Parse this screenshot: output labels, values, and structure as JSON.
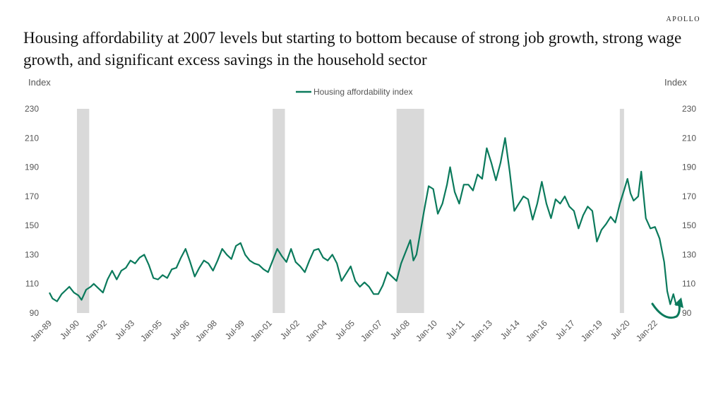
{
  "brand": "APOLLO",
  "title": "Housing affordability at 2007 levels but starting to bottom because of strong job growth, strong wage growth, and significant excess savings in the household sector",
  "chart_data": {
    "type": "line",
    "ylabel_left": "Index",
    "ylabel_right": "Index",
    "ylim": [
      90,
      230
    ],
    "y_ticks": [
      90,
      110,
      130,
      150,
      170,
      190,
      210,
      230
    ],
    "x_range": [
      "1989-01",
      "2023-03"
    ],
    "x_tick_labels": [
      "Jan-89",
      "Jul-90",
      "Jan-92",
      "Jul-93",
      "Jan-95",
      "Jul-96",
      "Jan-98",
      "Jul-99",
      "Jan-01",
      "Jul-02",
      "Jan-04",
      "Jul-05",
      "Jan-07",
      "Jul-08",
      "Jan-10",
      "Jul-11",
      "Jan-13",
      "Jul-14",
      "Jan-16",
      "Jul-17",
      "Jan-19",
      "Jul-20",
      "Jan-22"
    ],
    "x_tick_dates": [
      "1989-01",
      "1990-07",
      "1992-01",
      "1993-07",
      "1995-01",
      "1996-07",
      "1998-01",
      "1999-07",
      "2001-01",
      "2002-07",
      "2004-01",
      "2005-07",
      "2007-01",
      "2008-07",
      "2010-01",
      "2011-07",
      "2013-01",
      "2014-07",
      "2016-01",
      "2017-07",
      "2019-01",
      "2020-07",
      "2022-01"
    ],
    "grid": false,
    "legend_position": "top-center",
    "recession_shading": [
      {
        "start": "1990-07",
        "end": "1991-03"
      },
      {
        "start": "2001-03",
        "end": "2001-11"
      },
      {
        "start": "2007-12",
        "end": "2009-06"
      },
      {
        "start": "2020-02",
        "end": "2020-04"
      }
    ],
    "series": [
      {
        "name": "Housing affordability index",
        "color": "#0b7a5c",
        "points": [
          [
            "1989-01",
            104
          ],
          [
            "1989-03",
            100
          ],
          [
            "1989-06",
            98
          ],
          [
            "1989-09",
            103
          ],
          [
            "1989-12",
            106
          ],
          [
            "1990-02",
            108
          ],
          [
            "1990-05",
            104
          ],
          [
            "1990-08",
            102
          ],
          [
            "1990-10",
            99
          ],
          [
            "1991-01",
            106
          ],
          [
            "1991-04",
            108
          ],
          [
            "1991-06",
            110
          ],
          [
            "1991-09",
            107
          ],
          [
            "1991-12",
            104
          ],
          [
            "1992-03",
            113
          ],
          [
            "1992-06",
            119
          ],
          [
            "1992-09",
            113
          ],
          [
            "1992-12",
            119
          ],
          [
            "1993-03",
            121
          ],
          [
            "1993-06",
            126
          ],
          [
            "1993-09",
            124
          ],
          [
            "1993-12",
            128
          ],
          [
            "1994-03",
            130
          ],
          [
            "1994-06",
            123
          ],
          [
            "1994-09",
            114
          ],
          [
            "1994-12",
            113
          ],
          [
            "1995-03",
            116
          ],
          [
            "1995-06",
            114
          ],
          [
            "1995-09",
            120
          ],
          [
            "1995-12",
            121
          ],
          [
            "1996-03",
            128
          ],
          [
            "1996-06",
            134
          ],
          [
            "1996-09",
            125
          ],
          [
            "1996-12",
            115
          ],
          [
            "1997-03",
            121
          ],
          [
            "1997-06",
            126
          ],
          [
            "1997-09",
            124
          ],
          [
            "1997-12",
            119
          ],
          [
            "1998-03",
            126
          ],
          [
            "1998-06",
            134
          ],
          [
            "1998-09",
            130
          ],
          [
            "1998-12",
            127
          ],
          [
            "1999-03",
            136
          ],
          [
            "1999-06",
            138
          ],
          [
            "1999-09",
            130
          ],
          [
            "1999-12",
            126
          ],
          [
            "2000-03",
            124
          ],
          [
            "2000-06",
            123
          ],
          [
            "2000-09",
            120
          ],
          [
            "2000-12",
            118
          ],
          [
            "2001-03",
            126
          ],
          [
            "2001-06",
            134
          ],
          [
            "2001-09",
            129
          ],
          [
            "2001-12",
            125
          ],
          [
            "2002-03",
            134
          ],
          [
            "2002-06",
            125
          ],
          [
            "2002-09",
            122
          ],
          [
            "2002-12",
            118
          ],
          [
            "2003-03",
            126
          ],
          [
            "2003-06",
            133
          ],
          [
            "2003-09",
            134
          ],
          [
            "2003-12",
            128
          ],
          [
            "2004-03",
            126
          ],
          [
            "2004-06",
            130
          ],
          [
            "2004-09",
            124
          ],
          [
            "2004-12",
            112
          ],
          [
            "2005-03",
            117
          ],
          [
            "2005-06",
            122
          ],
          [
            "2005-09",
            112
          ],
          [
            "2005-12",
            108
          ],
          [
            "2006-03",
            111
          ],
          [
            "2006-06",
            108
          ],
          [
            "2006-09",
            103
          ],
          [
            "2006-12",
            103
          ],
          [
            "2007-03",
            109
          ],
          [
            "2007-06",
            118
          ],
          [
            "2007-09",
            115
          ],
          [
            "2007-12",
            112
          ],
          [
            "2008-03",
            124
          ],
          [
            "2008-06",
            132
          ],
          [
            "2008-09",
            140
          ],
          [
            "2008-11",
            126
          ],
          [
            "2009-01",
            130
          ],
          [
            "2009-04",
            148
          ],
          [
            "2009-06",
            160
          ],
          [
            "2009-09",
            177
          ],
          [
            "2009-12",
            175
          ],
          [
            "2010-03",
            158
          ],
          [
            "2010-06",
            165
          ],
          [
            "2010-09",
            178
          ],
          [
            "2010-11",
            190
          ],
          [
            "2011-02",
            173
          ],
          [
            "2011-05",
            165
          ],
          [
            "2011-08",
            178
          ],
          [
            "2011-11",
            178
          ],
          [
            "2012-02",
            174
          ],
          [
            "2012-05",
            185
          ],
          [
            "2012-08",
            182
          ],
          [
            "2012-11",
            203
          ],
          [
            "2013-02",
            193
          ],
          [
            "2013-05",
            181
          ],
          [
            "2013-08",
            193
          ],
          [
            "2013-11",
            210
          ],
          [
            "2014-02",
            187
          ],
          [
            "2014-05",
            160
          ],
          [
            "2014-08",
            165
          ],
          [
            "2014-11",
            170
          ],
          [
            "2015-02",
            168
          ],
          [
            "2015-05",
            154
          ],
          [
            "2015-08",
            165
          ],
          [
            "2015-11",
            180
          ],
          [
            "2016-02",
            165
          ],
          [
            "2016-05",
            155
          ],
          [
            "2016-08",
            168
          ],
          [
            "2016-11",
            165
          ],
          [
            "2017-02",
            170
          ],
          [
            "2017-05",
            163
          ],
          [
            "2017-08",
            160
          ],
          [
            "2017-11",
            148
          ],
          [
            "2018-02",
            157
          ],
          [
            "2018-05",
            163
          ],
          [
            "2018-08",
            160
          ],
          [
            "2018-11",
            139
          ],
          [
            "2019-02",
            147
          ],
          [
            "2019-05",
            151
          ],
          [
            "2019-08",
            156
          ],
          [
            "2019-11",
            152
          ],
          [
            "2020-02",
            165
          ],
          [
            "2020-05",
            175
          ],
          [
            "2020-07",
            182
          ],
          [
            "2020-09",
            172
          ],
          [
            "2020-11",
            167
          ],
          [
            "2021-02",
            170
          ],
          [
            "2021-04",
            187
          ],
          [
            "2021-07",
            155
          ],
          [
            "2021-10",
            148
          ],
          [
            "2022-01",
            149
          ],
          [
            "2022-04",
            141
          ],
          [
            "2022-07",
            125
          ],
          [
            "2022-09",
            105
          ],
          [
            "2022-11",
            96
          ],
          [
            "2023-01",
            103
          ],
          [
            "2023-03",
            95
          ]
        ]
      }
    ]
  }
}
